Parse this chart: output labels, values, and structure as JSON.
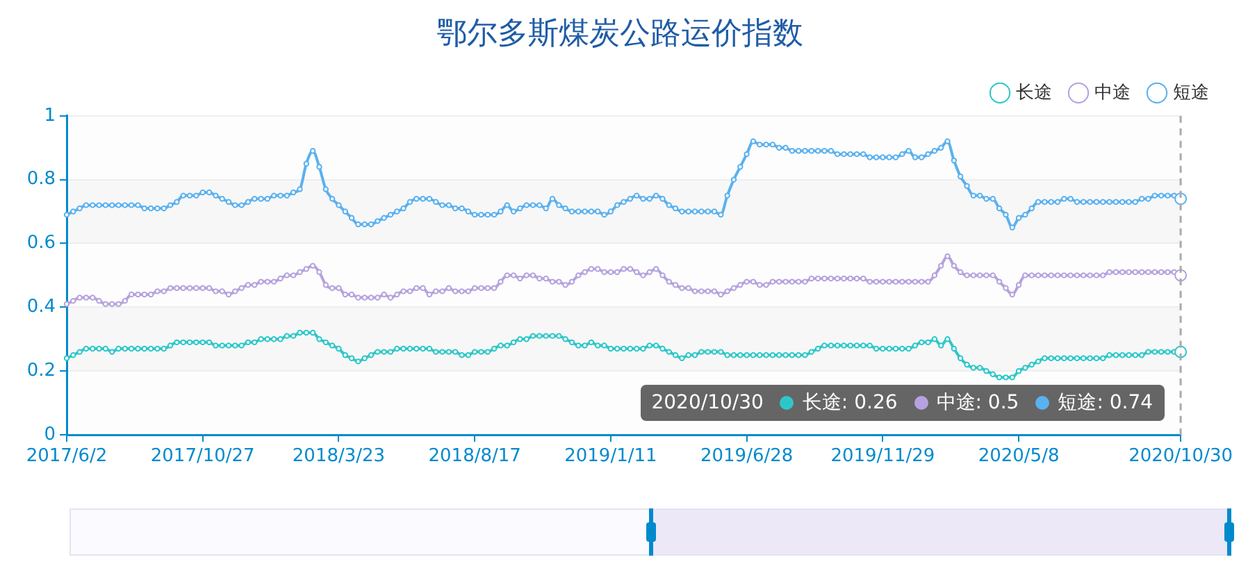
{
  "chart_data": {
    "type": "line",
    "title": "鄂尔多斯煤炭公路运价指数",
    "categories": [
      "2017/6/2",
      null,
      null,
      null,
      null,
      null,
      null,
      null,
      null,
      null,
      null,
      null,
      null,
      null,
      null,
      null,
      null,
      null,
      null,
      null,
      null,
      "2017/10/27",
      null,
      null,
      null,
      null,
      null,
      null,
      null,
      null,
      null,
      null,
      null,
      null,
      null,
      null,
      null,
      null,
      null,
      null,
      null,
      null,
      "2018/3/23",
      null,
      null,
      null,
      null,
      null,
      null,
      null,
      null,
      null,
      null,
      null,
      null,
      null,
      null,
      null,
      null,
      null,
      null,
      null,
      null,
      "2018/8/17",
      null,
      null,
      null,
      null,
      null,
      null,
      null,
      null,
      null,
      null,
      null,
      null,
      null,
      null,
      null,
      null,
      null,
      null,
      null,
      null,
      "2019/1/11",
      null,
      null,
      null,
      null,
      null,
      null,
      null,
      null,
      null,
      null,
      null,
      null,
      null,
      null,
      null,
      null,
      null,
      null,
      null,
      null,
      "2019/6/28",
      null,
      null,
      null,
      null,
      null,
      null,
      null,
      null,
      null,
      null,
      null,
      null,
      null,
      null,
      null,
      null,
      null,
      null,
      null,
      null,
      "2019/11/29",
      null,
      null,
      null,
      null,
      null,
      null,
      null,
      null,
      null,
      null,
      null,
      null,
      null,
      null,
      null,
      null,
      null,
      null,
      null,
      null,
      "2020/5/8",
      null,
      null,
      null,
      null,
      null,
      null,
      null,
      null,
      null,
      null,
      null,
      null,
      null,
      null,
      null,
      null,
      null,
      null,
      null,
      null,
      null,
      null,
      null,
      null,
      "2020/10/30"
    ],
    "series": [
      {
        "name": "长途",
        "color": "#2ec7c9",
        "values": [
          0.24,
          0.25,
          0.26,
          0.27,
          0.27,
          0.27,
          0.27,
          0.26,
          0.27,
          0.27,
          0.27,
          0.27,
          0.27,
          0.27,
          0.27,
          0.27,
          0.28,
          0.29,
          0.29,
          0.29,
          0.29,
          0.29,
          0.29,
          0.28,
          0.28,
          0.28,
          0.28,
          0.28,
          0.29,
          0.29,
          0.3,
          0.3,
          0.3,
          0.3,
          0.31,
          0.31,
          0.32,
          0.32,
          0.32,
          0.3,
          0.29,
          0.28,
          0.27,
          0.25,
          0.24,
          0.23,
          0.24,
          0.25,
          0.26,
          0.26,
          0.26,
          0.27,
          0.27,
          0.27,
          0.27,
          0.27,
          0.27,
          0.26,
          0.26,
          0.26,
          0.26,
          0.25,
          0.25,
          0.26,
          0.26,
          0.26,
          0.27,
          0.28,
          0.28,
          0.29,
          0.3,
          0.3,
          0.31,
          0.31,
          0.31,
          0.31,
          0.31,
          0.3,
          0.29,
          0.28,
          0.28,
          0.29,
          0.28,
          0.28,
          0.27,
          0.27,
          0.27,
          0.27,
          0.27,
          0.27,
          0.28,
          0.28,
          0.27,
          0.26,
          0.25,
          0.24,
          0.25,
          0.25,
          0.26,
          0.26,
          0.26,
          0.26,
          0.25,
          0.25,
          0.25,
          0.25,
          0.25,
          0.25,
          0.25,
          0.25,
          0.25,
          0.25,
          0.25,
          0.25,
          0.25,
          0.26,
          0.27,
          0.28,
          0.28,
          0.28,
          0.28,
          0.28,
          0.28,
          0.28,
          0.28,
          0.27,
          0.27,
          0.27,
          0.27,
          0.27,
          0.27,
          0.28,
          0.29,
          0.29,
          0.3,
          0.28,
          0.3,
          0.27,
          0.24,
          0.22,
          0.21,
          0.21,
          0.2,
          0.19,
          0.18,
          0.18,
          0.18,
          0.2,
          0.21,
          0.22,
          0.23,
          0.24,
          0.24,
          0.24,
          0.24,
          0.24,
          0.24,
          0.24,
          0.24,
          0.24,
          0.24,
          0.25,
          0.25,
          0.25,
          0.25,
          0.25,
          0.25,
          0.26,
          0.26,
          0.26,
          0.26,
          0.26,
          0.26
        ]
      },
      {
        "name": "中途",
        "color": "#b6a2de",
        "values": [
          0.41,
          0.42,
          0.43,
          0.43,
          0.43,
          0.42,
          0.41,
          0.41,
          0.41,
          0.42,
          0.44,
          0.44,
          0.44,
          0.44,
          0.45,
          0.45,
          0.46,
          0.46,
          0.46,
          0.46,
          0.46,
          0.46,
          0.46,
          0.45,
          0.45,
          0.44,
          0.45,
          0.46,
          0.47,
          0.47,
          0.48,
          0.48,
          0.48,
          0.49,
          0.5,
          0.5,
          0.51,
          0.52,
          0.53,
          0.51,
          0.47,
          0.46,
          0.46,
          0.44,
          0.44,
          0.43,
          0.43,
          0.43,
          0.43,
          0.44,
          0.43,
          0.44,
          0.45,
          0.45,
          0.46,
          0.46,
          0.44,
          0.45,
          0.45,
          0.46,
          0.45,
          0.45,
          0.45,
          0.46,
          0.46,
          0.46,
          0.46,
          0.48,
          0.5,
          0.5,
          0.49,
          0.5,
          0.5,
          0.49,
          0.49,
          0.48,
          0.48,
          0.47,
          0.48,
          0.5,
          0.51,
          0.52,
          0.52,
          0.51,
          0.51,
          0.51,
          0.52,
          0.52,
          0.51,
          0.5,
          0.51,
          0.52,
          0.5,
          0.48,
          0.47,
          0.46,
          0.46,
          0.45,
          0.45,
          0.45,
          0.45,
          0.44,
          0.45,
          0.46,
          0.47,
          0.48,
          0.48,
          0.47,
          0.47,
          0.48,
          0.48,
          0.48,
          0.48,
          0.48,
          0.48,
          0.49,
          0.49,
          0.49,
          0.49,
          0.49,
          0.49,
          0.49,
          0.49,
          0.49,
          0.48,
          0.48,
          0.48,
          0.48,
          0.48,
          0.48,
          0.48,
          0.48,
          0.48,
          0.48,
          0.5,
          0.53,
          0.56,
          0.53,
          0.51,
          0.5,
          0.5,
          0.5,
          0.5,
          0.5,
          0.48,
          0.46,
          0.44,
          0.47,
          0.5,
          0.5,
          0.5,
          0.5,
          0.5,
          0.5,
          0.5,
          0.5,
          0.5,
          0.5,
          0.5,
          0.5,
          0.5,
          0.51,
          0.51,
          0.51,
          0.51,
          0.51,
          0.51,
          0.51,
          0.51,
          0.51,
          0.51,
          0.51,
          0.5
        ]
      },
      {
        "name": "短途",
        "color": "#5ab1ef",
        "values": [
          0.69,
          0.7,
          0.71,
          0.72,
          0.72,
          0.72,
          0.72,
          0.72,
          0.72,
          0.72,
          0.72,
          0.72,
          0.71,
          0.71,
          0.71,
          0.71,
          0.72,
          0.73,
          0.75,
          0.75,
          0.75,
          0.76,
          0.76,
          0.75,
          0.74,
          0.73,
          0.72,
          0.72,
          0.73,
          0.74,
          0.74,
          0.74,
          0.75,
          0.75,
          0.75,
          0.76,
          0.77,
          0.85,
          0.89,
          0.84,
          0.77,
          0.74,
          0.72,
          0.7,
          0.68,
          0.66,
          0.66,
          0.66,
          0.67,
          0.68,
          0.69,
          0.7,
          0.71,
          0.73,
          0.74,
          0.74,
          0.74,
          0.73,
          0.72,
          0.72,
          0.71,
          0.71,
          0.7,
          0.69,
          0.69,
          0.69,
          0.69,
          0.7,
          0.72,
          0.7,
          0.71,
          0.72,
          0.72,
          0.72,
          0.71,
          0.74,
          0.72,
          0.71,
          0.7,
          0.7,
          0.7,
          0.7,
          0.7,
          0.69,
          0.7,
          0.72,
          0.73,
          0.74,
          0.75,
          0.74,
          0.74,
          0.75,
          0.74,
          0.72,
          0.71,
          0.7,
          0.7,
          0.7,
          0.7,
          0.7,
          0.7,
          0.69,
          0.75,
          0.8,
          0.84,
          0.88,
          0.92,
          0.91,
          0.91,
          0.91,
          0.9,
          0.9,
          0.89,
          0.89,
          0.89,
          0.89,
          0.89,
          0.89,
          0.89,
          0.88,
          0.88,
          0.88,
          0.88,
          0.88,
          0.87,
          0.87,
          0.87,
          0.87,
          0.87,
          0.88,
          0.89,
          0.87,
          0.87,
          0.88,
          0.89,
          0.9,
          0.92,
          0.86,
          0.81,
          0.78,
          0.75,
          0.75,
          0.74,
          0.74,
          0.71,
          0.69,
          0.65,
          0.68,
          0.69,
          0.71,
          0.73,
          0.73,
          0.73,
          0.73,
          0.74,
          0.74,
          0.73,
          0.73,
          0.73,
          0.73,
          0.73,
          0.73,
          0.73,
          0.73,
          0.73,
          0.73,
          0.74,
          0.74,
          0.75,
          0.75,
          0.75,
          0.75,
          0.74
        ]
      }
    ],
    "ylim": [
      0,
      1
    ],
    "yticks": [
      0,
      0.2,
      0.4,
      0.6,
      0.8,
      1
    ],
    "grid": "y",
    "legend": "top right",
    "marker": "circle",
    "line_style": "solid",
    "ref_lines": [
      {
        "axis": "x",
        "value": "2020/10/30",
        "color": "#aaaaaa",
        "line_style": "dashed"
      }
    ],
    "annotations": [
      "长途: 0.26",
      "中途: 0.5",
      "短途: 0.74"
    ]
  }
}
